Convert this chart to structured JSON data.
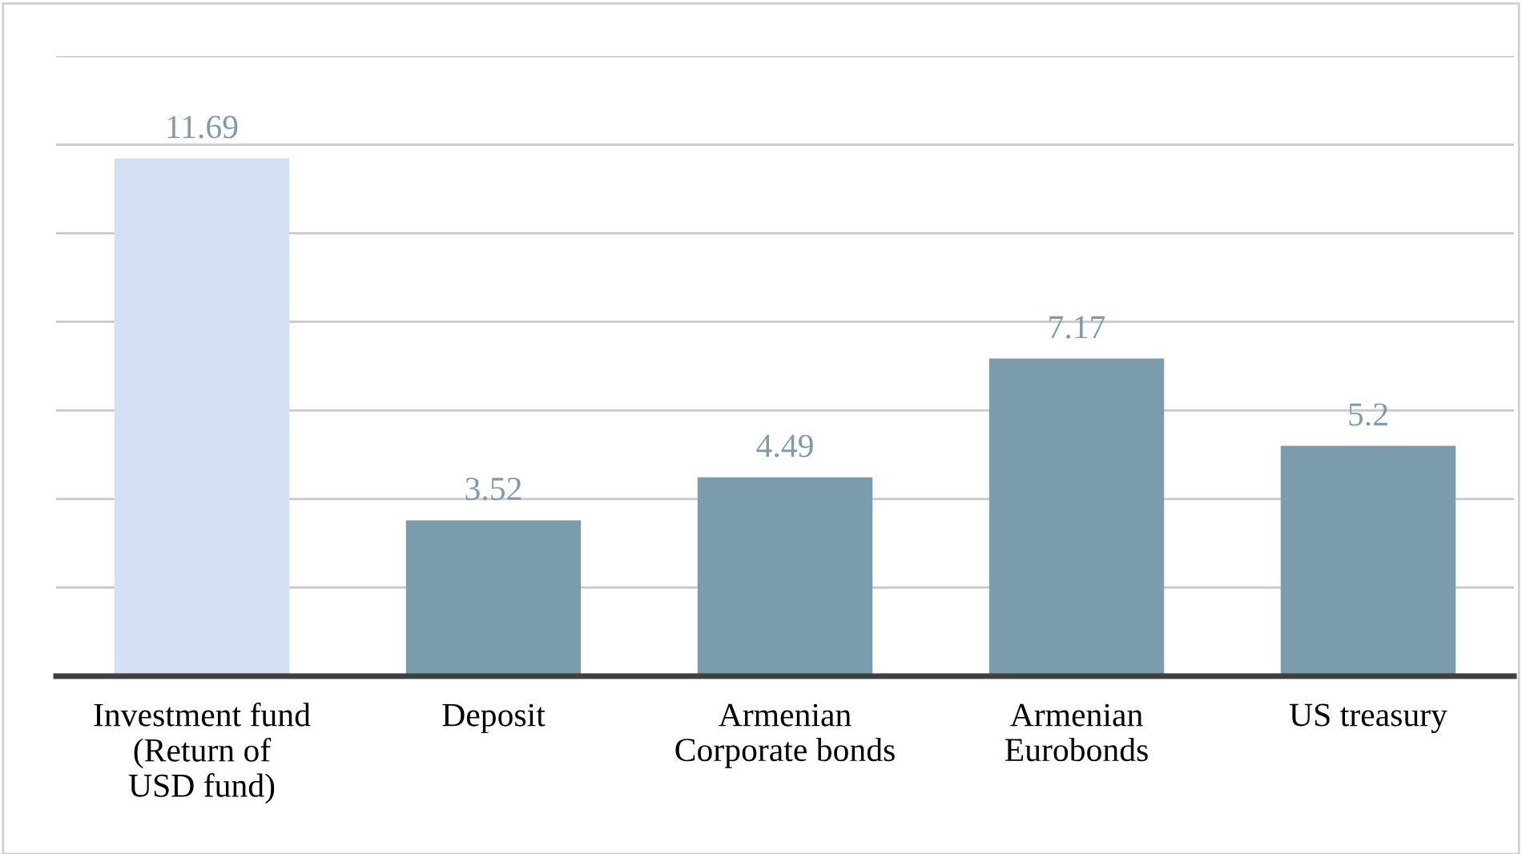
{
  "chart_data": {
    "type": "bar",
    "categories": [
      "Investment fund\n(Return of\nUSD fund)",
      "Deposit",
      "Armenian\nCorporate bonds",
      "Armenian\nEurobonds",
      "US treasury"
    ],
    "values": [
      11.69,
      3.52,
      4.49,
      7.17,
      5.2
    ],
    "colors": [
      "#d6e0f5",
      "#7b9cad",
      "#7b9cad",
      "#7b9cad",
      "#7b9cad"
    ],
    "ylim": [
      0,
      14
    ],
    "yticks": [
      {
        "value": 0,
        "label": null
      },
      {
        "value": 2,
        "label": null
      },
      {
        "value": 4,
        "label": null
      },
      {
        "value": 6,
        "label": null
      },
      {
        "value": 8,
        "label": null
      },
      {
        "value": 10,
        "label": null
      },
      {
        "value": 12,
        "label": null
      },
      {
        "value": 14,
        "label": null
      }
    ],
    "grid": "y",
    "tick_labels": "x",
    "data_labels": true,
    "legend": false
  }
}
